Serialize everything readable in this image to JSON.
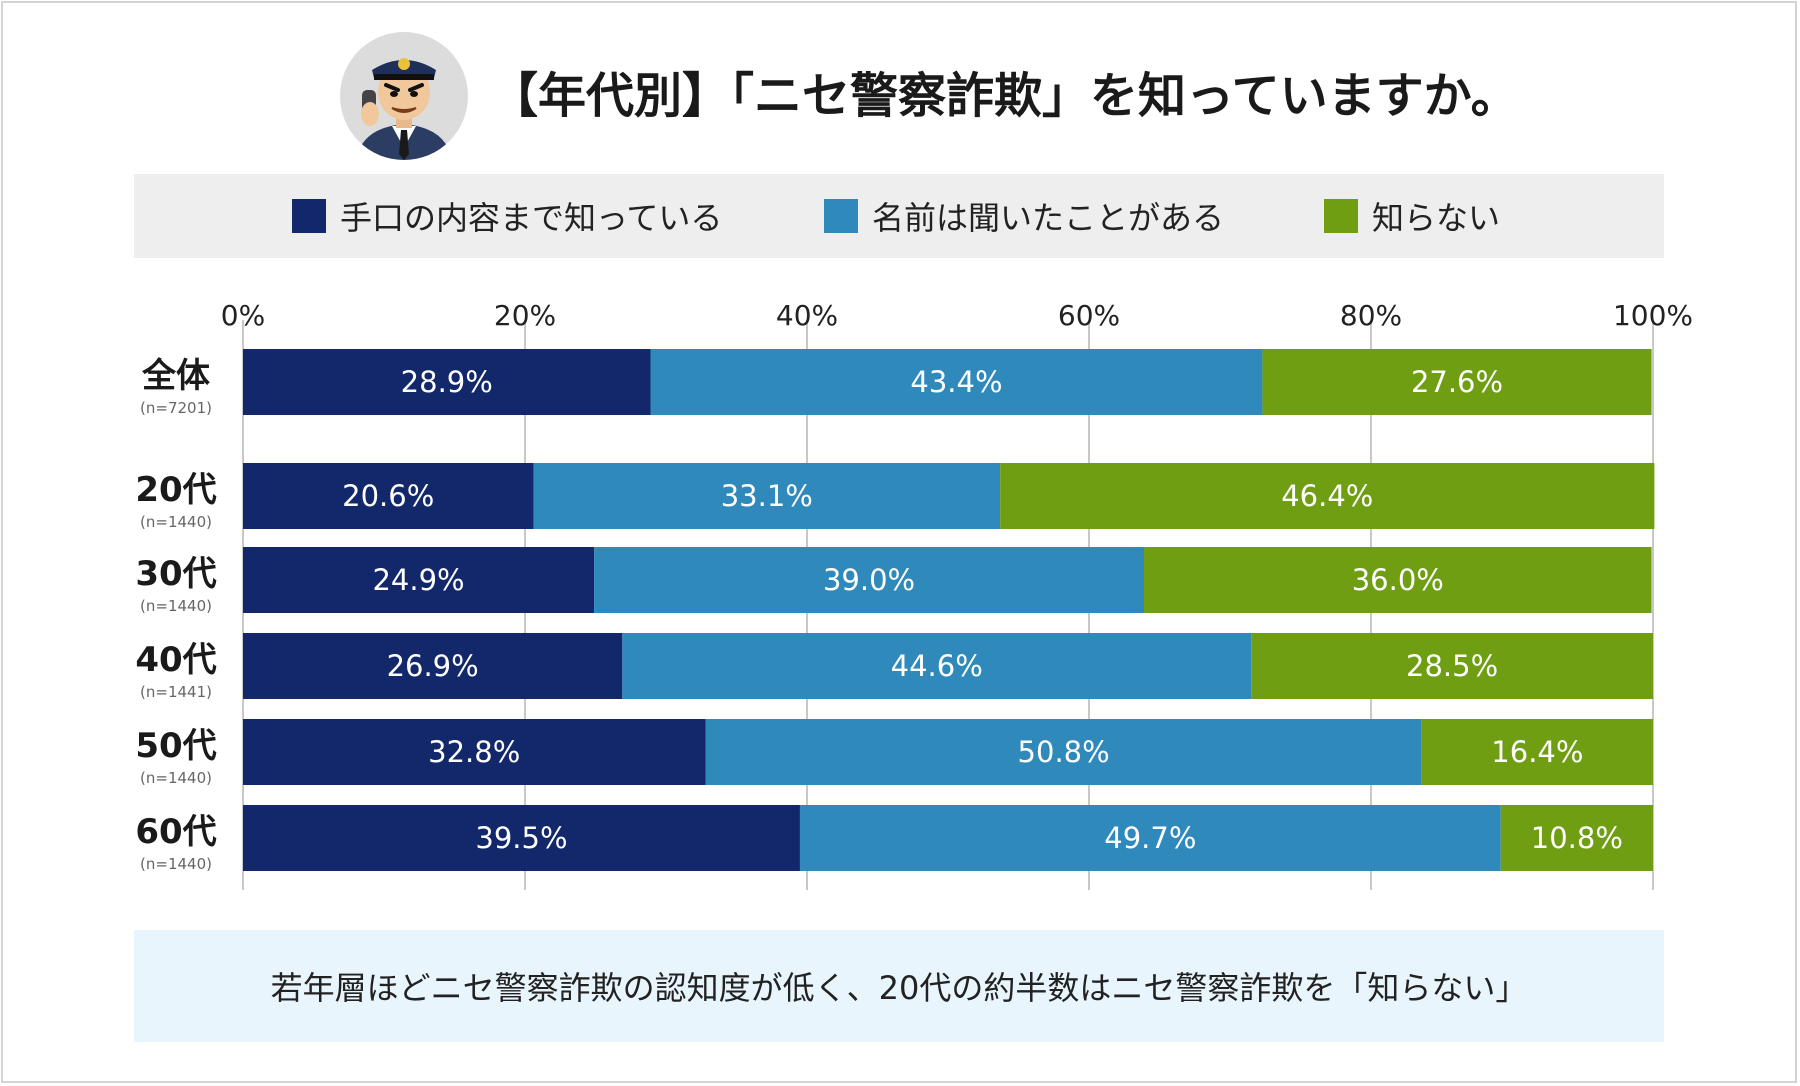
{
  "title": "【年代別】「ニセ警察詐欺」を知っていますか。",
  "avatar_icon": "police-officer-on-phone-icon",
  "colors": {
    "known_method": "#13276b",
    "heard_name": "#2f89bb",
    "unknown": "#6f9e12",
    "grid": "#c8c8c8",
    "legend_bg": "#eeeeee",
    "note_bg": "#e9f5fc"
  },
  "legend": [
    {
      "label": "手口の内容まで知っている",
      "color": "#13276b"
    },
    {
      "label": "名前は聞いたことがある",
      "color": "#2f89bb"
    },
    {
      "label": "知らない",
      "color": "#6f9e12"
    }
  ],
  "chart_data": {
    "type": "bar",
    "orientation": "horizontal-stacked-100",
    "title": "【年代別】「ニセ警察詐欺」を知っていますか。",
    "xlim": [
      0,
      100
    ],
    "x_ticks": [
      "0%",
      "20%",
      "40%",
      "60%",
      "80%",
      "100%"
    ],
    "grid": true,
    "legend_position": "top",
    "categories": [
      "全体",
      "20代",
      "30代",
      "40代",
      "50代",
      "60代"
    ],
    "category_n": [
      "(n=7201)",
      "(n=1440)",
      "(n=1440)",
      "(n=1441)",
      "(n=1440)",
      "(n=1440)"
    ],
    "series": [
      {
        "name": "手口の内容まで知っている",
        "values": [
          28.9,
          20.6,
          24.9,
          26.9,
          32.8,
          39.5
        ],
        "labels": [
          "28.9%",
          "20.6%",
          "24.9%",
          "26.9%",
          "32.8%",
          "39.5%"
        ]
      },
      {
        "name": "名前は聞いたことがある",
        "values": [
          43.4,
          33.1,
          39.0,
          44.6,
          50.8,
          49.7
        ],
        "labels": [
          "43.4%",
          "33.1%",
          "39.0%",
          "44.6%",
          "50.8%",
          "49.7%"
        ]
      },
      {
        "name": "知らない",
        "values": [
          27.6,
          46.4,
          36.0,
          28.5,
          16.4,
          10.8
        ],
        "labels": [
          "27.6%",
          "46.4%",
          "36.0%",
          "28.5%",
          "16.4%",
          "10.8%"
        ]
      }
    ]
  },
  "note": "若年層ほどニセ警察詐欺の認知度が低く、20代の約半数はニセ警察詐欺を「知らない」"
}
